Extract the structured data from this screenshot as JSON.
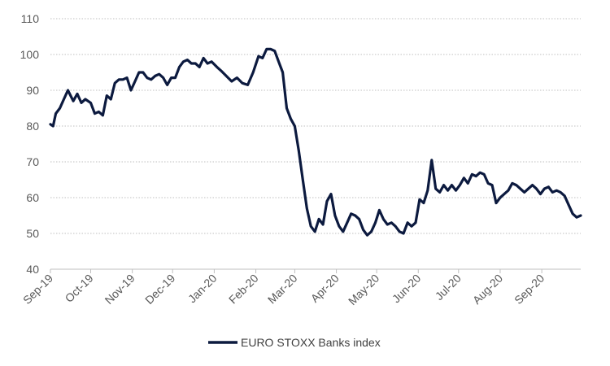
{
  "chart_data": {
    "type": "line",
    "title": "",
    "xlabel": "",
    "ylabel": "",
    "ylim": [
      40,
      110
    ],
    "yticks": [
      40,
      50,
      60,
      70,
      80,
      90,
      100,
      110
    ],
    "grid": "horizontal dotted",
    "legend": "bottom-center",
    "colors": {
      "line": "#0c1a3f",
      "grid": "#bfbfbf",
      "axis": "#bfbfbf",
      "text": "#595959"
    },
    "x_tick_labels": [
      "Sep-19",
      "Oct-19",
      "Nov-19",
      "Dec-19",
      "Jan-20",
      "Feb-20",
      "Mar-20",
      "Apr-20",
      "May-20",
      "Jun-20",
      "Jul-20",
      "Aug-20",
      "Sep-20"
    ],
    "x_range": [
      "2019-09-01",
      "2020-09-30"
    ],
    "series": [
      {
        "name": "EURO STOXX Banks index",
        "x": [
          "2019-09-01",
          "2019-09-03",
          "2019-09-05",
          "2019-09-08",
          "2019-09-11",
          "2019-09-14",
          "2019-09-16",
          "2019-09-18",
          "2019-09-21",
          "2019-09-24",
          "2019-09-27",
          "2019-10-01",
          "2019-10-04",
          "2019-10-07",
          "2019-10-10",
          "2019-10-13",
          "2019-10-16",
          "2019-10-19",
          "2019-10-22",
          "2019-10-25",
          "2019-10-28",
          "2019-10-31",
          "2019-11-03",
          "2019-11-06",
          "2019-11-09",
          "2019-11-12",
          "2019-11-15",
          "2019-11-18",
          "2019-11-21",
          "2019-11-24",
          "2019-11-27",
          "2019-11-30",
          "2019-12-03",
          "2019-12-06",
          "2019-12-09",
          "2019-12-12",
          "2019-12-15",
          "2019-12-18",
          "2019-12-21",
          "2019-12-24",
          "2019-12-27",
          "2019-12-30",
          "2020-01-03",
          "2020-01-06",
          "2020-01-10",
          "2020-01-14",
          "2020-01-18",
          "2020-01-22",
          "2020-01-26",
          "2020-01-30",
          "2020-02-03",
          "2020-02-06",
          "2020-02-09",
          "2020-02-12",
          "2020-02-15",
          "2020-02-18",
          "2020-02-21",
          "2020-02-24",
          "2020-02-27",
          "2020-03-01",
          "2020-03-04",
          "2020-03-07",
          "2020-03-10",
          "2020-03-13",
          "2020-03-16",
          "2020-03-19",
          "2020-03-22",
          "2020-03-25",
          "2020-03-28",
          "2020-03-31",
          "2020-04-03",
          "2020-04-06",
          "2020-04-09",
          "2020-04-12",
          "2020-04-15",
          "2020-04-18",
          "2020-04-21",
          "2020-04-24",
          "2020-04-27",
          "2020-04-30",
          "2020-05-03",
          "2020-05-06",
          "2020-05-09",
          "2020-05-12",
          "2020-05-15",
          "2020-05-18",
          "2020-05-21",
          "2020-05-24",
          "2020-05-27",
          "2020-05-30",
          "2020-06-02",
          "2020-06-05",
          "2020-06-08",
          "2020-06-11",
          "2020-06-14",
          "2020-06-17",
          "2020-06-20",
          "2020-06-23",
          "2020-06-26",
          "2020-06-29",
          "2020-07-02",
          "2020-07-05",
          "2020-07-08",
          "2020-07-11",
          "2020-07-14",
          "2020-07-17",
          "2020-07-20",
          "2020-07-23",
          "2020-07-26",
          "2020-07-29",
          "2020-08-01",
          "2020-08-04",
          "2020-08-07",
          "2020-08-10",
          "2020-08-13",
          "2020-08-16",
          "2020-08-19",
          "2020-08-22",
          "2020-08-25",
          "2020-08-28",
          "2020-08-31",
          "2020-09-03",
          "2020-09-06",
          "2020-09-09",
          "2020-09-12",
          "2020-09-15",
          "2020-09-18",
          "2020-09-21",
          "2020-09-24",
          "2020-09-27",
          "2020-09-30"
        ],
        "y": [
          80.5,
          80.0,
          83.5,
          85.0,
          87.5,
          90.0,
          88.5,
          87.0,
          89.0,
          86.5,
          87.5,
          86.5,
          83.5,
          84.0,
          83.0,
          88.5,
          87.5,
          92.0,
          93.0,
          93.0,
          93.5,
          90.0,
          92.5,
          95.0,
          95.0,
          93.5,
          93.0,
          94.0,
          94.5,
          93.5,
          91.5,
          93.5,
          93.5,
          96.5,
          98.0,
          98.5,
          97.5,
          97.5,
          96.5,
          99.0,
          97.5,
          98.0,
          96.5,
          95.5,
          94.0,
          92.5,
          93.5,
          92.0,
          91.5,
          95.0,
          99.5,
          99.0,
          101.5,
          101.5,
          101.0,
          98.0,
          95.0,
          85.0,
          82.0,
          80.0,
          73.0,
          65.0,
          57.0,
          52.0,
          50.5,
          54.0,
          52.5,
          59.0,
          61.0,
          55.0,
          52.0,
          50.5,
          53.0,
          55.5,
          55.0,
          54.0,
          51.0,
          49.5,
          50.5,
          53.0,
          56.5,
          54.0,
          52.5,
          53.0,
          52.0,
          50.5,
          50.0,
          53.0,
          52.0,
          53.0,
          59.5,
          58.5,
          62.0,
          70.5,
          62.5,
          61.5,
          63.5,
          62.0,
          63.5,
          62.0,
          63.5,
          65.5,
          64.0,
          66.5,
          66.0,
          67.0,
          66.5,
          64.0,
          63.5,
          58.5,
          60.0,
          61.0,
          62.0,
          64.0,
          63.5,
          62.5,
          61.5,
          62.5,
          63.5,
          62.5,
          61.0,
          62.5,
          63.0,
          61.5,
          62.0,
          61.5,
          60.5,
          58.0,
          55.5,
          54.5,
          55.0
        ]
      }
    ]
  }
}
